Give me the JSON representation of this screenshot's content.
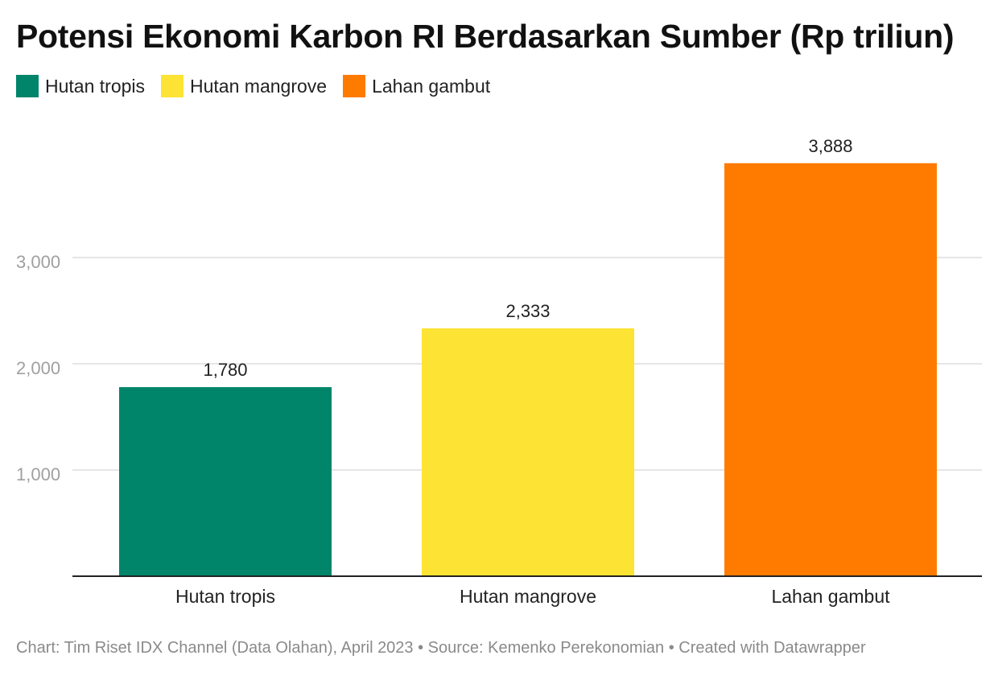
{
  "title": "Potensi Ekonomi Karbon RI Berdasarkan Sumber (Rp triliun)",
  "legend": [
    {
      "label": "Hutan tropis",
      "color": "#00856a"
    },
    {
      "label": "Hutan mangrove",
      "color": "#fde333"
    },
    {
      "label": "Lahan gambut",
      "color": "#ff7b00"
    }
  ],
  "footer": "Chart: Tim Riset IDX Channel (Data Olahan), April 2023 • Source: Kemenko Perekonomian • Created with Datawrapper",
  "chart_data": {
    "type": "bar",
    "title": "Potensi Ekonomi Karbon RI Berdasarkan Sumber (Rp triliun)",
    "categories": [
      "Hutan tropis",
      "Hutan mangrove",
      "Lahan gambut"
    ],
    "values": [
      1780,
      2333,
      3888
    ],
    "value_labels": [
      "1,780",
      "2,333",
      "3,888"
    ],
    "colors": [
      "#00856a",
      "#fde333",
      "#ff7b00"
    ],
    "yticks": [
      1000,
      2000,
      3000
    ],
    "ytick_labels": [
      "1,000",
      "2,000",
      "3,000"
    ],
    "ylim": [
      0,
      4100
    ],
    "xlabel": "",
    "ylabel": "",
    "grid": true,
    "legend_position": "top-left"
  }
}
